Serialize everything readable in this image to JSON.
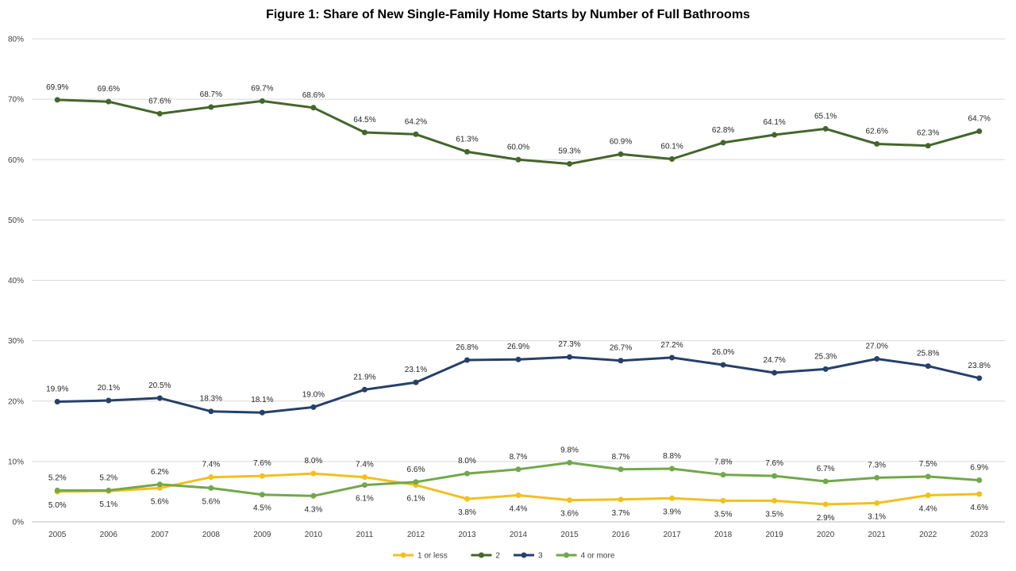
{
  "chart_data": {
    "type": "line",
    "title": "Figure 1: Share of New Single-Family Home Starts by Number of Full Bathrooms",
    "xlabel": "",
    "ylabel": "",
    "ylim": [
      0,
      80
    ],
    "yticks": [
      "0%",
      "10%",
      "20%",
      "30%",
      "40%",
      "50%",
      "60%",
      "70%",
      "80%"
    ],
    "grid": true,
    "legend_position": "bottom",
    "categories": [
      "2005",
      "2006",
      "2007",
      "2008",
      "2009",
      "2010",
      "2011",
      "2012",
      "2013",
      "2014",
      "2015",
      "2016",
      "2017",
      "2018",
      "2019",
      "2020",
      "2021",
      "2022",
      "2023"
    ],
    "series": [
      {
        "name": "1 or less",
        "color": "#f2c01e",
        "values": [
          5.0,
          5.1,
          5.6,
          7.4,
          7.6,
          8.0,
          7.4,
          6.1,
          3.8,
          4.4,
          3.6,
          3.7,
          3.9,
          3.5,
          3.5,
          2.9,
          3.1,
          4.4,
          4.6
        ],
        "labels": [
          "5.0%",
          "5.1%",
          "5.6%",
          "7.4%",
          "7.6%",
          "8.0%",
          "7.4%",
          "6.1%",
          "3.8%",
          "4.4%",
          "3.6%",
          "3.7%",
          "3.9%",
          "3.5%",
          "3.5%",
          "2.9%",
          "3.1%",
          "4.4%",
          "4.6%"
        ]
      },
      {
        "name": "2",
        "color": "#44662c",
        "values": [
          69.9,
          69.6,
          67.6,
          68.7,
          69.7,
          68.6,
          64.5,
          64.2,
          61.3,
          60.0,
          59.3,
          60.9,
          60.1,
          62.8,
          64.1,
          65.1,
          62.6,
          62.3,
          64.7
        ],
        "labels": [
          "69.9%",
          "69.6%",
          "67.6%",
          "68.7%",
          "69.7%",
          "68.6%",
          "64.5%",
          "64.2%",
          "61.3%",
          "60.0%",
          "59.3%",
          "60.9%",
          "60.1%",
          "62.8%",
          "64.1%",
          "65.1%",
          "62.6%",
          "62.3%",
          "64.7%"
        ]
      },
      {
        "name": "3",
        "color": "#26406a",
        "values": [
          19.9,
          20.1,
          20.5,
          18.3,
          18.1,
          19.0,
          21.9,
          23.1,
          26.8,
          26.9,
          27.3,
          26.7,
          27.2,
          26.0,
          24.7,
          25.3,
          27.0,
          25.8,
          23.8
        ],
        "labels": [
          "19.9%",
          "20.1%",
          "20.5%",
          "18.3%",
          "18.1%",
          "19.0%",
          "21.9%",
          "23.1%",
          "26.8%",
          "26.9%",
          "27.3%",
          "26.7%",
          "27.2%",
          "26.0%",
          "24.7%",
          "25.3%",
          "27.0%",
          "25.8%",
          "23.8%"
        ]
      },
      {
        "name": "4 or more",
        "color": "#72a84b",
        "values": [
          5.2,
          5.2,
          6.2,
          5.6,
          4.5,
          4.3,
          6.1,
          6.6,
          8.0,
          8.7,
          9.8,
          8.7,
          8.8,
          7.8,
          7.6,
          6.7,
          7.3,
          7.5,
          6.9
        ],
        "labels": [
          "5.2%",
          "5.2%",
          "6.2%",
          "5.6%",
          "4.5%",
          "4.3%",
          "6.1%",
          "6.6%",
          "8.0%",
          "8.7%",
          "9.8%",
          "8.7%",
          "8.8%",
          "7.8%",
          "7.6%",
          "6.7%",
          "7.3%",
          "7.5%",
          "6.9%"
        ]
      }
    ]
  }
}
